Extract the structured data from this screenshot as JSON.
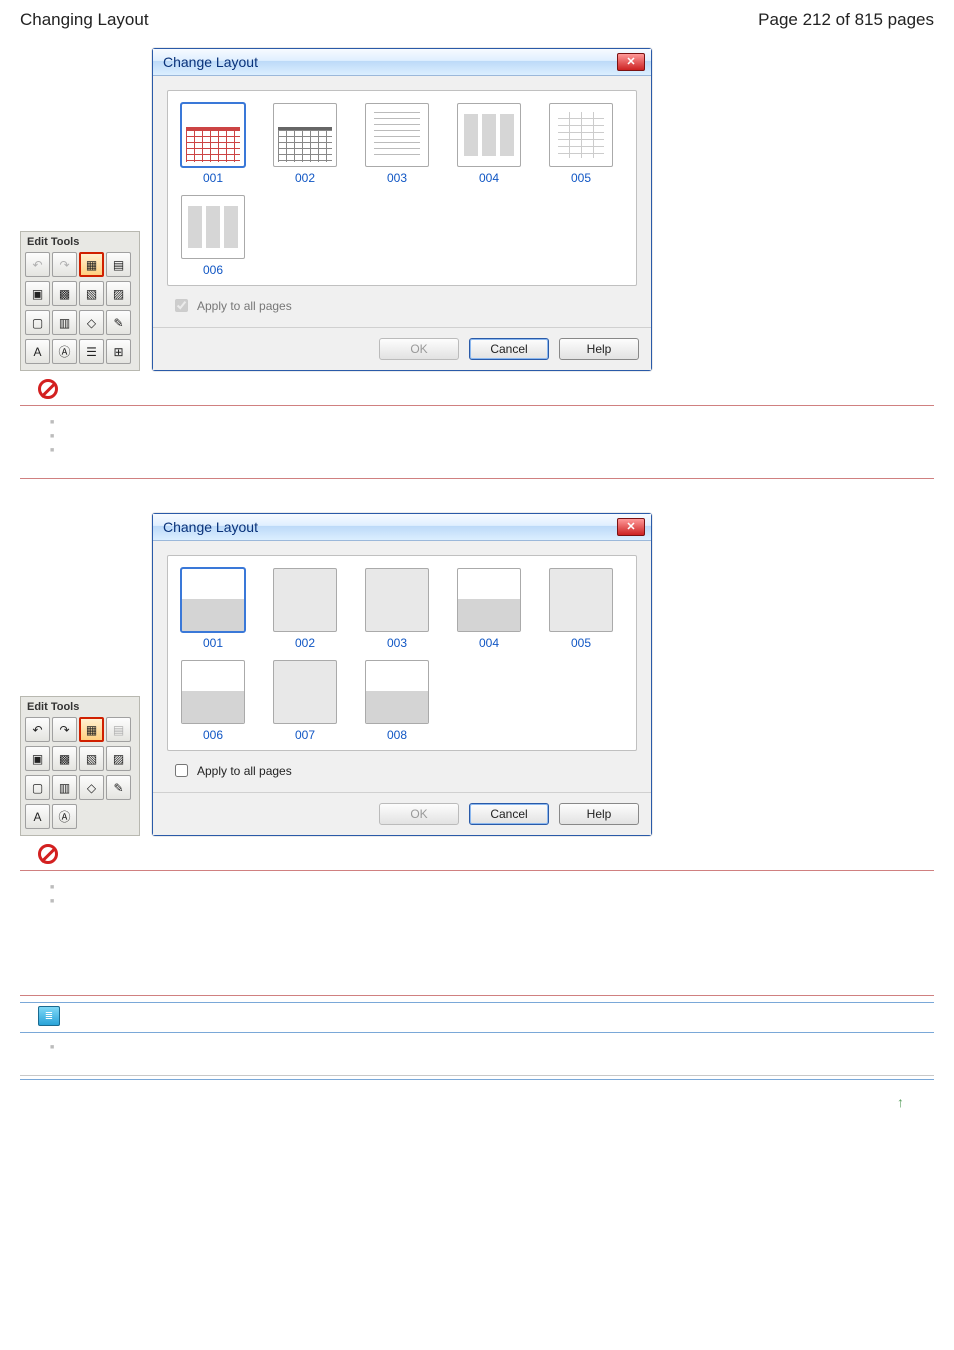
{
  "page": {
    "title": "Changing Layout",
    "page_indicator": "Page 212 of 815 pages"
  },
  "edit_tools": {
    "title": "Edit Tools"
  },
  "dialog1": {
    "title": "Change Layout",
    "thumbs": [
      {
        "label": "001",
        "cls": "cal selected"
      },
      {
        "label": "002",
        "cls": "cal2"
      },
      {
        "label": "003",
        "cls": "lines"
      },
      {
        "label": "004",
        "cls": "cols"
      },
      {
        "label": "005",
        "cls": "dots"
      },
      {
        "label": "006",
        "cls": "cols"
      }
    ],
    "apply_label": "Apply to all pages",
    "apply_checked": true,
    "apply_disabled": true,
    "btn_ok": "OK",
    "btn_cancel": "Cancel",
    "btn_help": "Help"
  },
  "dialog2": {
    "title": "Change Layout",
    "thumbs": [
      {
        "label": "001",
        "cls": "half selected"
      },
      {
        "label": "002",
        "cls": "blank"
      },
      {
        "label": "003",
        "cls": "blank"
      },
      {
        "label": "004",
        "cls": "half"
      },
      {
        "label": "005",
        "cls": "blank"
      },
      {
        "label": "006",
        "cls": "half"
      },
      {
        "label": "007",
        "cls": "blank"
      },
      {
        "label": "008",
        "cls": "half"
      }
    ],
    "apply_label": "Apply to all pages",
    "apply_checked": false,
    "apply_disabled": false,
    "btn_ok": "OK",
    "btn_cancel": "Cancel",
    "btn_help": "Help"
  },
  "bullets1_count": 3,
  "bullets2_count": 2,
  "bullets3_count": 1,
  "colors": {
    "link": "#1056c4",
    "titlebar_text": "#09327a",
    "prohibit": "#d32020"
  }
}
